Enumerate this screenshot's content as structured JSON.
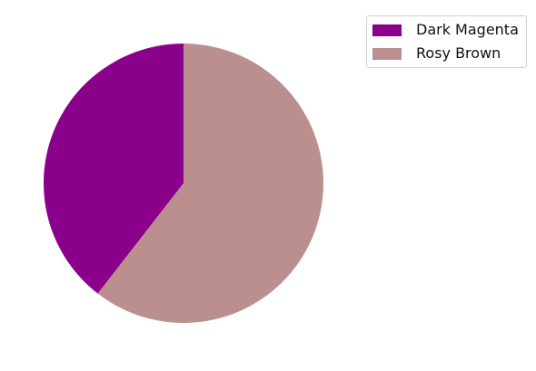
{
  "chart_data": {
    "type": "pie",
    "categories": [
      "Dark Magenta",
      "Rosy Brown"
    ],
    "values": [
      39.5,
      60.5
    ],
    "colors": [
      "#8b008b",
      "#bc8f8f"
    ],
    "title": "",
    "legend_position": "top-right",
    "start_angle_deg": 90,
    "direction": "counterclockwise"
  }
}
